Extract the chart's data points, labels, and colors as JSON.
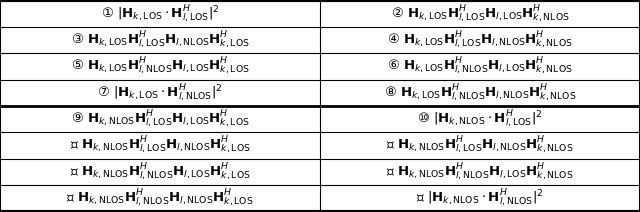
{
  "title": "",
  "rows": 8,
  "cols": 2,
  "figsize": [
    6.4,
    2.12
  ],
  "dpi": 100,
  "bg_color": "#ffffff",
  "border_color": "#000000",
  "divider_row": 4,
  "cells": [
    [
      "① $|\\mathbf{H}_{k,\\mathrm{LOS}} \\cdot \\mathbf{H}^{H}_{l,\\mathrm{LOS}}|^2$",
      "② $\\mathbf{H}_{k,\\mathrm{LOS}}\\mathbf{H}^{H}_{l,\\mathrm{LOS}}\\mathbf{H}_{l,\\mathrm{LOS}}\\mathbf{H}^{H}_{k,\\mathrm{NLOS}}$"
    ],
    [
      "③ $\\mathbf{H}_{k,\\mathrm{LOS}}\\mathbf{H}^{H}_{l,\\mathrm{LOS}}\\mathbf{H}_{l,\\mathrm{NLOS}}\\mathbf{H}^{H}_{k,\\mathrm{LOS}}$",
      "④ $\\mathbf{H}_{k,\\mathrm{LOS}}\\mathbf{H}^{H}_{l,\\mathrm{LOS}}\\mathbf{H}_{l,\\mathrm{NLOS}}\\mathbf{H}^{H}_{k,\\mathrm{NLOS}}$"
    ],
    [
      "⑤ $\\mathbf{H}_{k,\\mathrm{LOS}}\\mathbf{H}^{H}_{l,\\mathrm{NLOS}}\\mathbf{H}_{l,\\mathrm{LOS}}\\mathbf{H}^{H}_{k,\\mathrm{LOS}}$",
      "⑥ $\\mathbf{H}_{k,\\mathrm{LOS}}\\mathbf{H}^{H}_{l,\\mathrm{NLOS}}\\mathbf{H}_{l,\\mathrm{LOS}}\\mathbf{H}^{H}_{k,\\mathrm{NLOS}}$"
    ],
    [
      "⑦ $|\\mathbf{H}_{k,\\mathrm{LOS}} \\cdot \\mathbf{H}^{H}_{l,\\mathrm{NLOS}}|^2$",
      "⑧ $\\mathbf{H}_{k,\\mathrm{LOS}}\\mathbf{H}^{H}_{l,\\mathrm{NLOS}}\\mathbf{H}_{l,\\mathrm{NLOS}}\\mathbf{H}^{H}_{k,\\mathrm{NLOS}}$"
    ],
    [
      "⑨ $\\mathbf{H}_{k,\\mathrm{NLOS}}\\mathbf{H}^{H}_{l,\\mathrm{LOS}}\\mathbf{H}_{l,\\mathrm{LOS}}\\mathbf{H}^{H}_{k,\\mathrm{LOS}}$",
      "⑩ $|\\mathbf{H}_{k,\\mathrm{NLOS}} \\cdot \\mathbf{H}^{H}_{l,\\mathrm{LOS}}|^2$"
    ],
    [
      "⑪ $\\mathbf{H}_{k,\\mathrm{NLOS}}\\mathbf{H}^{H}_{l,\\mathrm{LOS}}\\mathbf{H}_{l,\\mathrm{NLOS}}\\mathbf{H}^{H}_{k,\\mathrm{LOS}}$",
      "⑫ $\\mathbf{H}_{k,\\mathrm{NLOS}}\\mathbf{H}^{H}_{l,\\mathrm{LOS}}\\mathbf{H}_{l,\\mathrm{NLOS}}\\mathbf{H}^{H}_{k,\\mathrm{NLOS}}$"
    ],
    [
      "⑬ $\\mathbf{H}_{k,\\mathrm{NLOS}}\\mathbf{H}^{H}_{l,\\mathrm{NLOS}}\\mathbf{H}_{l,\\mathrm{LOS}}\\mathbf{H}^{H}_{k,\\mathrm{LOS}}$",
      "⑭ $\\mathbf{H}_{k,\\mathrm{NLOS}}\\mathbf{H}^{H}_{l,\\mathrm{NLOS}}\\mathbf{H}_{l,\\mathrm{LOS}}\\mathbf{H}^{H}_{k,\\mathrm{NLOS}}$"
    ],
    [
      "⑮ $\\mathbf{H}_{k,\\mathrm{NLOS}}\\mathbf{H}^{H}_{l,\\mathrm{NLOS}}\\mathbf{H}_{l,\\mathrm{NLOS}}\\mathbf{H}^{H}_{k,\\mathrm{LOS}}$",
      "⑯ $|\\mathbf{H}_{k,\\mathrm{NLOS}} \\cdot \\mathbf{H}^{H}_{l,\\mathrm{NLOS}}|^2$"
    ]
  ],
  "font_size": 9.5,
  "thick_line_after_row": 4
}
